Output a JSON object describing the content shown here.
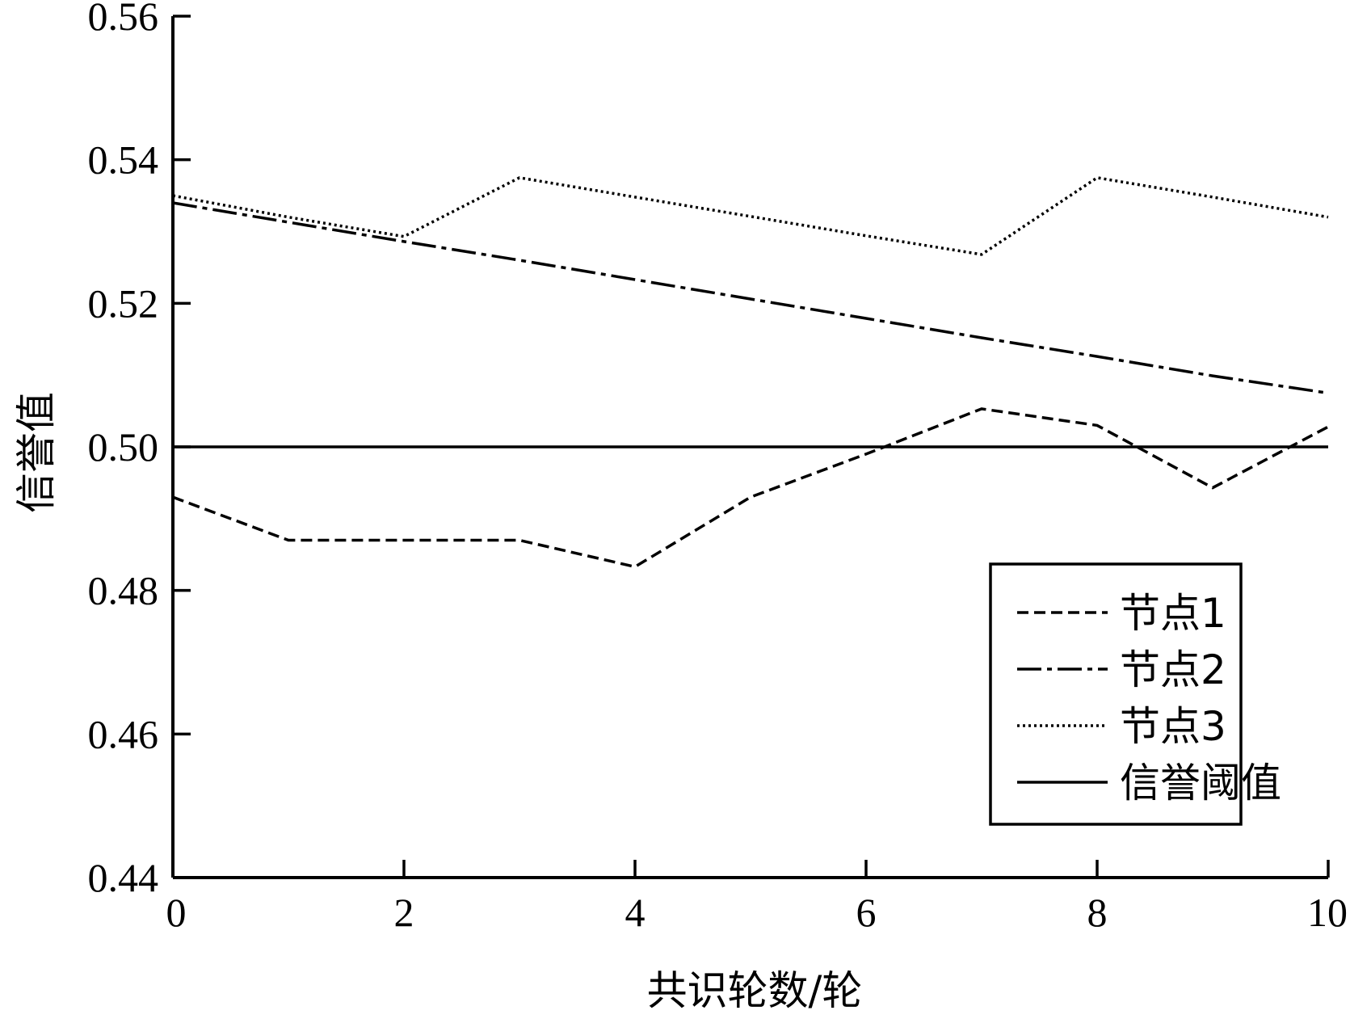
{
  "chart_data": {
    "type": "line",
    "xlabel": "共识轮数/轮",
    "ylabel": "信誉值",
    "xlim": [
      0,
      10
    ],
    "ylim": [
      0.44,
      0.56
    ],
    "xticks": [
      0,
      2,
      4,
      6,
      8,
      10
    ],
    "xtick_labels": [
      "0",
      "2",
      "4",
      "6",
      "8",
      "10"
    ],
    "yticks": [
      0.44,
      0.46,
      0.48,
      0.5,
      0.52,
      0.54,
      0.56
    ],
    "ytick_labels": [
      "0.44",
      "0.46",
      "0.48",
      "0.50",
      "0.52",
      "0.54",
      "0.56"
    ],
    "grid": false,
    "legend_position": "bottom-right",
    "x": [
      0,
      1,
      2,
      3,
      4,
      5,
      6,
      7,
      8,
      9,
      10
    ],
    "series": [
      {
        "name": "节点1",
        "style": "dashed",
        "color": "#000000",
        "values": [
          0.493,
          0.487,
          0.487,
          0.487,
          0.4833,
          0.493,
          0.499,
          0.5053,
          0.503,
          0.4943,
          0.5028
        ]
      },
      {
        "name": "节点2",
        "style": "dashdot",
        "color": "#000000",
        "values": [
          0.534,
          0.5313,
          0.5286,
          0.526,
          0.5233,
          0.5206,
          0.5179,
          0.5152,
          0.5126,
          0.5099,
          0.5075
        ]
      },
      {
        "name": "节点3",
        "style": "dotted",
        "color": "#000000",
        "values": [
          0.535,
          0.532,
          0.5293,
          0.5375,
          0.5348,
          0.5321,
          0.5294,
          0.5268,
          0.5375,
          0.5348,
          0.532
        ]
      },
      {
        "name": "信誉阈值",
        "style": "solid",
        "color": "#000000",
        "values": [
          0.5,
          0.5,
          0.5,
          0.5,
          0.5,
          0.5,
          0.5,
          0.5,
          0.5,
          0.5,
          0.5
        ]
      }
    ]
  }
}
